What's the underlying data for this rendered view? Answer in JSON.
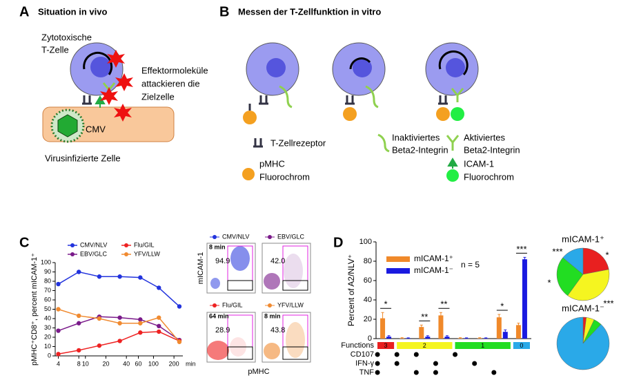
{
  "panel_a": {
    "label": "A",
    "title": "Situation in vivo",
    "cell_label": [
      "Zytotoxische",
      "T-Zelle"
    ],
    "effector_label": [
      "Effektormoleküle",
      "attackieren die",
      "Zielzelle"
    ],
    "virus": "CMV",
    "target_label": "Virusinfizierte Zelle"
  },
  "panel_b": {
    "label": "B",
    "title": "Messen der T-Zellfunktion in vitro",
    "legend": {
      "tcr": "T-Zellrezeptor",
      "pmhc": [
        "pMHC",
        "Fluorochrom"
      ],
      "inactive": [
        "Inaktiviertes",
        "Beta2-Integrin"
      ],
      "active": [
        "Aktiviertes",
        "Beta2-Integrin"
      ],
      "icam": [
        "ICAM-1",
        "Fluorochrom"
      ]
    }
  },
  "panel_c_label": "C",
  "panel_d_label": "D",
  "flow": {
    "y_label": "mICAM-1",
    "x_label": "pMHC",
    "plots": [
      {
        "name": "CMV/NLV",
        "color": "#2233dd",
        "time": "8 min",
        "percent": "94.9"
      },
      {
        "name": "EBV/GLC",
        "color": "#7a1a8a",
        "percent": "42.0"
      },
      {
        "name": "Flu/GIL",
        "color": "#ee2222",
        "time": "64 min",
        "percent": "28.9"
      },
      {
        "name": "YFV/LLW",
        "color": "#f08a30",
        "time": "8 min",
        "percent": "43.8"
      }
    ]
  },
  "chart_data": [
    {
      "type": "line",
      "ylabel": "pMHC⁺CD8⁺, percent mICAM-1⁺",
      "xunit": "min",
      "xscale": "log",
      "xlim": [
        3.6,
        270
      ],
      "xticks": [
        4,
        8,
        10,
        20,
        40,
        60,
        100,
        200
      ],
      "ylim": [
        0,
        100
      ],
      "yticks": [
        0,
        10,
        20,
        30,
        40,
        50,
        60,
        70,
        80,
        90,
        100
      ],
      "x": [
        4,
        8,
        16,
        32,
        64,
        120,
        240
      ],
      "series": [
        {
          "name": "CMV/NLV",
          "color": "#2233dd",
          "values": [
            77,
            90,
            85,
            85,
            84,
            73,
            53
          ]
        },
        {
          "name": "EBV/GLC",
          "color": "#7a1a8a",
          "values": [
            27,
            35,
            42,
            41,
            39,
            32,
            17
          ]
        },
        {
          "name": "Flu/GIL",
          "color": "#ee2222",
          "values": [
            2,
            6,
            11,
            16,
            25,
            26,
            16
          ]
        },
        {
          "name": "YFV/LLW",
          "color": "#f08a30",
          "values": [
            50,
            43,
            40,
            35,
            35,
            41,
            15
          ]
        }
      ]
    },
    {
      "type": "bar",
      "ylabel": "Percent of A2/NLV⁺",
      "ylim": [
        0,
        100
      ],
      "yticks": [
        0,
        20,
        40,
        60,
        80,
        100
      ],
      "note": "n = 5",
      "series": [
        {
          "name": "mICAM-1⁺",
          "color": "#f0892a",
          "values": [
            21,
            0.5,
            12,
            24,
            0.5,
            0.5,
            22,
            14
          ],
          "errors": [
            6,
            0.5,
            2,
            3,
            0.5,
            0.5,
            3,
            2
          ]
        },
        {
          "name": "mICAM-1⁻",
          "color": "#1a1ae0",
          "values": [
            2,
            0.5,
            2,
            2,
            0.5,
            0.5,
            7,
            82
          ],
          "errors": [
            1,
            0.3,
            1,
            1,
            0.3,
            0.3,
            2,
            2
          ]
        }
      ],
      "significance": [
        "*",
        null,
        "**",
        "**",
        null,
        null,
        "*",
        "***"
      ],
      "matrix": {
        "title": "Functions",
        "groups": [
          {
            "label": "3",
            "color": "#e82020"
          },
          {
            "label": "2",
            "color": "#f5f520"
          },
          {
            "label": "1",
            "color": "#22dd22"
          },
          {
            "label": "0",
            "color": "#2aa9e8"
          }
        ],
        "rows": [
          {
            "label": "CD107",
            "dots": [
              true,
              true,
              true,
              false,
              true,
              false,
              false,
              false
            ]
          },
          {
            "label": "IFN-γ",
            "dots": [
              true,
              true,
              false,
              true,
              false,
              true,
              false,
              false
            ]
          },
          {
            "label": "TNF",
            "dots": [
              true,
              false,
              true,
              true,
              false,
              false,
              true,
              false
            ]
          }
        ]
      }
    },
    {
      "type": "pie",
      "title": "mICAM-1⁺",
      "values": [
        22,
        38,
        26,
        14
      ],
      "colors": [
        "#e82020",
        "#f5f520",
        "#22dd22",
        "#2aa9e8"
      ],
      "annotations": [
        "***",
        "*",
        "*",
        "***"
      ]
    },
    {
      "type": "pie",
      "title": "mICAM-1⁻",
      "values": [
        2,
        5,
        5,
        88
      ],
      "colors": [
        "#e82020",
        "#f5f520",
        "#22dd22",
        "#2aa9e8"
      ]
    }
  ]
}
